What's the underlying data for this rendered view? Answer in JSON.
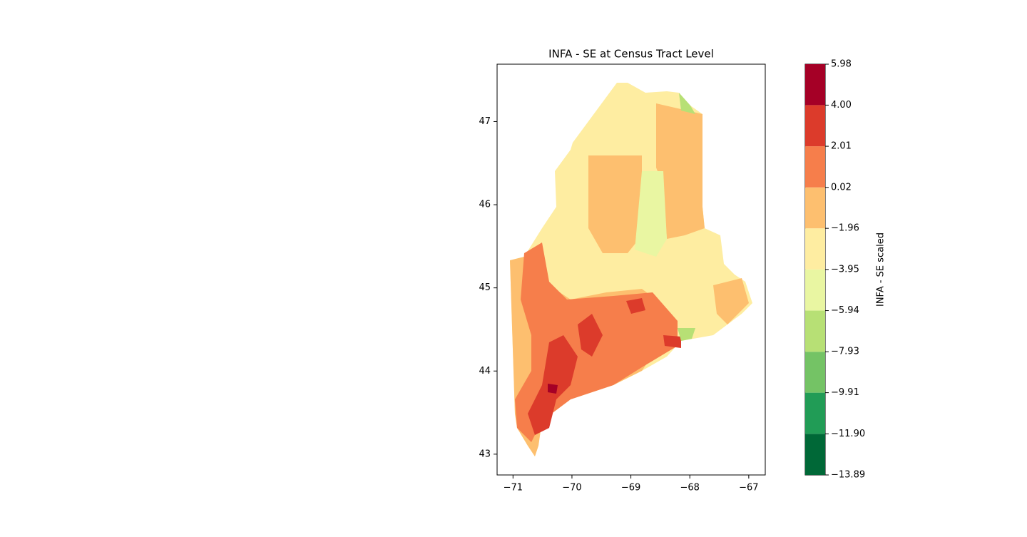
{
  "chart_data": {
    "type": "choropleth",
    "title": "INFA - SE at Census Tract Level",
    "xlim": [
      -71.27,
      -66.72
    ],
    "ylim": [
      42.75,
      47.69
    ],
    "xticks": [
      {
        "value": -71,
        "label": "−71"
      },
      {
        "value": -70,
        "label": "−70"
      },
      {
        "value": -69,
        "label": "−69"
      },
      {
        "value": -68,
        "label": "−68"
      },
      {
        "value": -67,
        "label": "−67"
      }
    ],
    "yticks": [
      43,
      44,
      45,
      46,
      47
    ],
    "colorbar": {
      "label": "INFA - SE scaled",
      "clim": [
        -13.89,
        5.98
      ],
      "ticks": [
        {
          "value": -13.89,
          "label": "−13.89"
        },
        {
          "value": -11.9,
          "label": "−11.90"
        },
        {
          "value": -9.91,
          "label": "−9.91"
        },
        {
          "value": -7.93,
          "label": "−7.93"
        },
        {
          "value": -5.94,
          "label": "−5.94"
        },
        {
          "value": -3.95,
          "label": "−3.95"
        },
        {
          "value": -1.96,
          "label": "−1.96"
        },
        {
          "value": 0.02,
          "label": "0.02"
        },
        {
          "value": 2.01,
          "label": "2.01"
        },
        {
          "value": 4.0,
          "label": "4.00"
        },
        {
          "value": 5.98,
          "label": "5.98"
        }
      ],
      "colors": [
        "#006837",
        "#219c56",
        "#74c365",
        "#b7e075",
        "#e9f6a2",
        "#feeda1",
        "#fdbf6f",
        "#f67e4b",
        "#dc3b2b",
        "#a50026"
      ]
    }
  }
}
